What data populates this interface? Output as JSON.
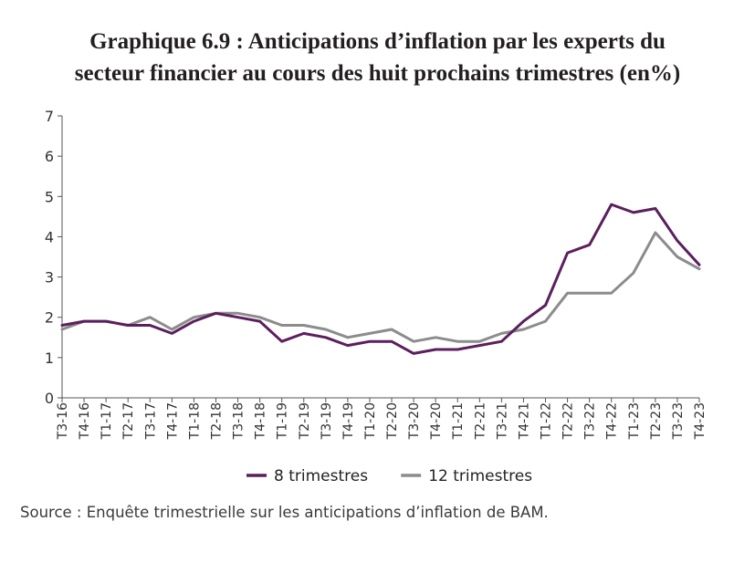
{
  "title_line1": "Graphique 6.9 : Anticipations d’inflation par les experts du",
  "title_line2": "secteur financier au cours des huit prochains trimestres (en%)",
  "source": "Source : Enquête trimestrielle sur les anticipations d’inflation de BAM.",
  "chart_data": {
    "type": "line",
    "title": "Graphique 6.9 : Anticipations d’inflation par les experts du secteur financier au cours des huit prochains trimestres (en%)",
    "xlabel": "",
    "ylabel": "",
    "ylim": [
      0,
      7
    ],
    "yticks": [
      0,
      1,
      2,
      3,
      4,
      5,
      6,
      7
    ],
    "grid": false,
    "legend_position": "bottom",
    "categories": [
      "T3-16",
      "T4-16",
      "T1-17",
      "T2-17",
      "T3-17",
      "T4-17",
      "T1-18",
      "T2-18",
      "T3-18",
      "T4-18",
      "T1-19",
      "T2-19",
      "T3-19",
      "T4-19",
      "T1-20",
      "T2-20",
      "T3-20",
      "T4-20",
      "T1-21",
      "T2-21",
      "T3-21",
      "T4-21",
      "T1-22",
      "T2-22",
      "T3-22",
      "T4-22",
      "T1-23",
      "T2-23",
      "T3-23",
      "T4-23"
    ],
    "series": [
      {
        "name": "8 trimestres",
        "color": "#5b1f5e",
        "values": [
          1.8,
          1.9,
          1.9,
          1.8,
          1.8,
          1.6,
          1.9,
          2.1,
          2.0,
          1.9,
          1.4,
          1.6,
          1.5,
          1.3,
          1.4,
          1.4,
          1.1,
          1.2,
          1.2,
          1.3,
          1.4,
          1.9,
          2.3,
          3.6,
          3.8,
          4.8,
          4.6,
          4.7,
          3.9,
          3.3
        ]
      },
      {
        "name": "12 trimestres",
        "color": "#8c8c8c",
        "values": [
          1.7,
          1.9,
          1.9,
          1.8,
          2.0,
          1.7,
          2.0,
          2.1,
          2.1,
          2.0,
          1.8,
          1.8,
          1.7,
          1.5,
          1.6,
          1.7,
          1.4,
          1.5,
          1.4,
          1.4,
          1.6,
          1.7,
          1.9,
          2.6,
          2.6,
          2.6,
          3.1,
          4.1,
          3.5,
          3.2
        ]
      }
    ]
  }
}
